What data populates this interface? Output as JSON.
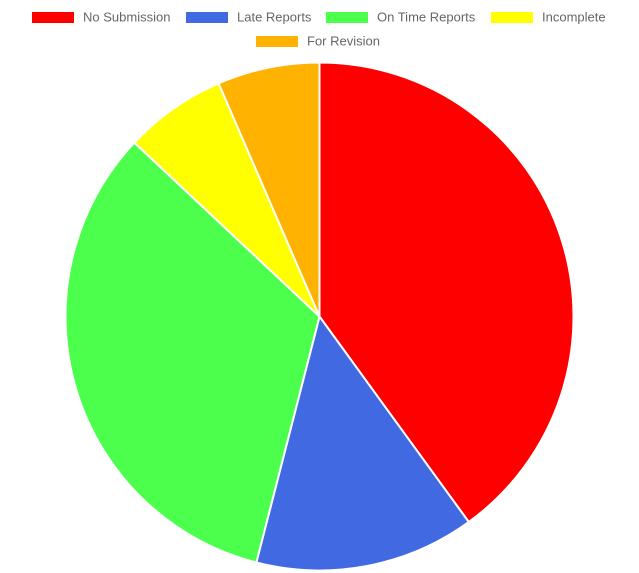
{
  "chart_data": {
    "type": "pie",
    "legend_position": "top",
    "labels": [
      "No Submission",
      "Late Reports",
      "On Time Reports",
      "Incomplete",
      "For Revision"
    ],
    "values": [
      40,
      14,
      33,
      6.5,
      6.5
    ],
    "colors": [
      "#ff0000",
      "#4169e1",
      "#4cff4c",
      "#ffff00",
      "#ffb300"
    ]
  }
}
